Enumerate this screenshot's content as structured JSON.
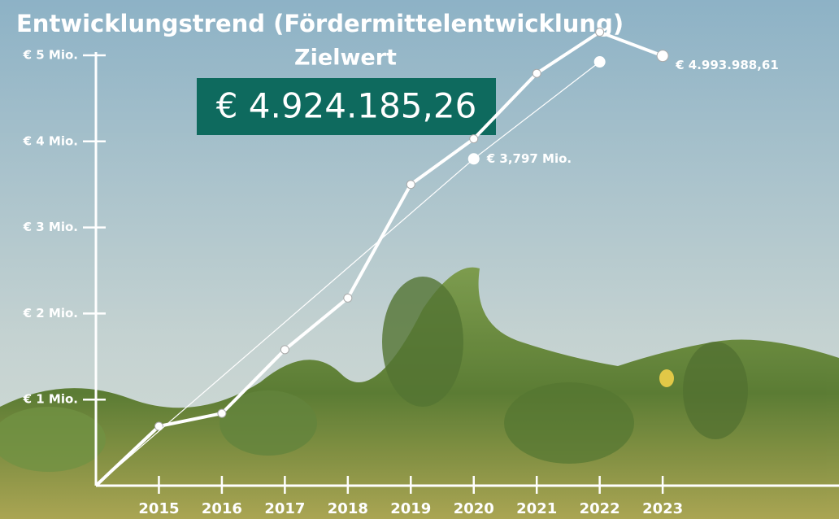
{
  "chart_data": {
    "type": "line",
    "title": "Entwicklungstrend (Fördermittelentwicklung)",
    "target_title": "Zielwert",
    "xlim": [
      2014,
      2025.8
    ],
    "xticks": [
      2015,
      2016,
      2017,
      2018,
      2019,
      2020,
      2021,
      2022,
      2023
    ],
    "ylim": [
      0,
      5000000
    ],
    "yticks": [
      {
        "value": 1000000,
        "label": "€ 1 Mio."
      },
      {
        "value": 2000000,
        "label": "€ 2 Mio."
      },
      {
        "value": 3000000,
        "label": "€ 3 Mio."
      },
      {
        "value": 4000000,
        "label": "€ 4 Mio."
      },
      {
        "value": 5000000,
        "label": "€ 5 Mio."
      }
    ],
    "series": [
      {
        "x": [
          2014,
          2015,
          2016,
          2017,
          2018,
          2019,
          2020,
          2021,
          2022,
          2023
        ],
        "values": [
          0,
          690000,
          840000,
          1580000,
          2180000,
          3500000,
          4030000,
          4790000,
          5270000,
          4993988.61
        ],
        "value_labels": [
          null,
          null,
          null,
          null,
          null,
          null,
          null,
          null,
          null,
          "€ 4.993.988,61"
        ],
        "color": "#ffffff",
        "width": 4
      },
      {
        "x": [
          2014,
          2020,
          2022
        ],
        "values": [
          0,
          3797000,
          4924185.26
        ],
        "value_labels": [
          null,
          "€ 3,797 Mio.",
          "€ 4.924.185,26"
        ],
        "color": "#ffffff",
        "width": 1.2
      }
    ]
  }
}
